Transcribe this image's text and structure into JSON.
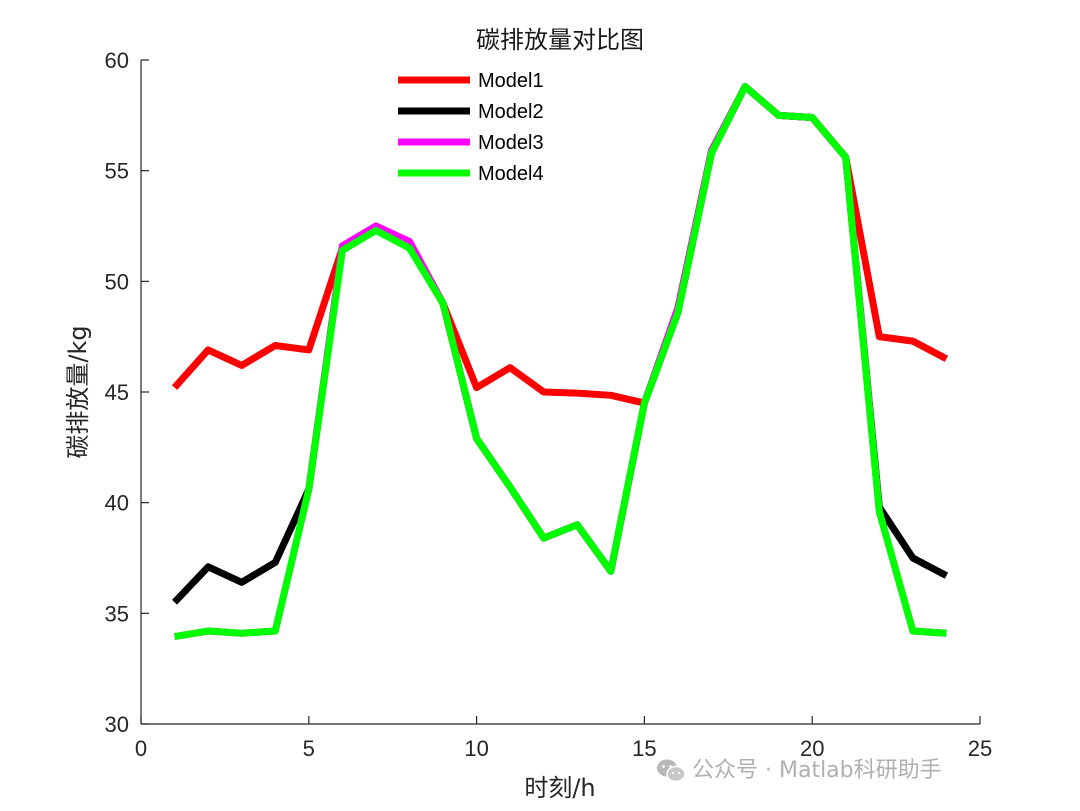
{
  "chart_data": {
    "type": "line",
    "title": "碳排放量对比图",
    "xlabel": "时刻/h",
    "ylabel": "碳排放量/kg",
    "xlim": [
      0,
      25
    ],
    "ylim": [
      30,
      60
    ],
    "xticks": [
      0,
      5,
      10,
      15,
      20,
      25
    ],
    "yticks": [
      30,
      35,
      40,
      45,
      50,
      55,
      60
    ],
    "x": [
      1,
      2,
      3,
      4,
      5,
      6,
      7,
      8,
      9,
      10,
      11,
      12,
      13,
      14,
      15,
      16,
      17,
      18,
      19,
      20,
      21,
      22,
      23,
      24
    ],
    "legend_position": "top-left",
    "grid": false,
    "series": [
      {
        "name": "Model1",
        "color": "#ff0000",
        "values": [
          45.2,
          46.9,
          46.2,
          47.1,
          46.9,
          51.5,
          52.5,
          51.8,
          49.0,
          45.2,
          46.1,
          45.0,
          44.95,
          44.85,
          44.5,
          48.8,
          55.9,
          58.8,
          57.5,
          57.4,
          55.6,
          47.5,
          47.3,
          46.5
        ]
      },
      {
        "name": "Model2",
        "color": "#000000",
        "values": [
          35.5,
          37.1,
          36.4,
          37.3,
          40.6,
          51.5,
          52.4,
          51.6,
          49.0,
          42.9,
          40.7,
          38.4,
          39.0,
          36.9,
          44.5,
          48.6,
          55.8,
          58.8,
          57.5,
          57.4,
          55.6,
          39.8,
          37.5,
          36.7
        ]
      },
      {
        "name": "Model3",
        "color": "#ff00ff",
        "values": [
          33.95,
          34.2,
          34.1,
          34.2,
          40.6,
          51.6,
          52.5,
          51.8,
          49.0,
          42.9,
          40.7,
          38.4,
          39.0,
          36.9,
          44.5,
          48.8,
          55.9,
          58.8,
          57.5,
          57.4,
          55.6,
          39.6,
          34.2,
          34.1
        ]
      },
      {
        "name": "Model4",
        "color": "#00ff00",
        "values": [
          33.95,
          34.2,
          34.1,
          34.2,
          40.6,
          51.4,
          52.3,
          51.5,
          49.0,
          42.9,
          40.7,
          38.4,
          39.0,
          36.9,
          44.5,
          48.6,
          55.8,
          58.8,
          57.5,
          57.4,
          55.6,
          39.6,
          34.2,
          34.1
        ]
      }
    ]
  },
  "watermark": "公众号 · Matlab科研助手",
  "watermark_icon": "wechat-icon"
}
